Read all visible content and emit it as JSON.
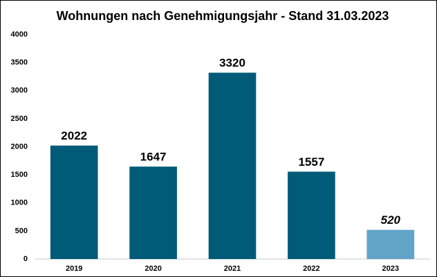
{
  "chart_data": {
    "type": "bar",
    "title": "Wohnungen nach Genehmigungsjahr - Stand 31.03.2023",
    "categories": [
      "2019",
      "2020",
      "2021",
      "2022",
      "2023"
    ],
    "values": [
      2022,
      1647,
      3320,
      1557,
      520
    ],
    "colors": [
      "#005b78",
      "#005b78",
      "#005b78",
      "#005b78",
      "#62a4c8"
    ],
    "ylim": [
      0,
      4000
    ],
    "yticks": [
      0,
      500,
      1000,
      1500,
      2000,
      2500,
      3000,
      3500,
      4000
    ],
    "grid": false
  }
}
